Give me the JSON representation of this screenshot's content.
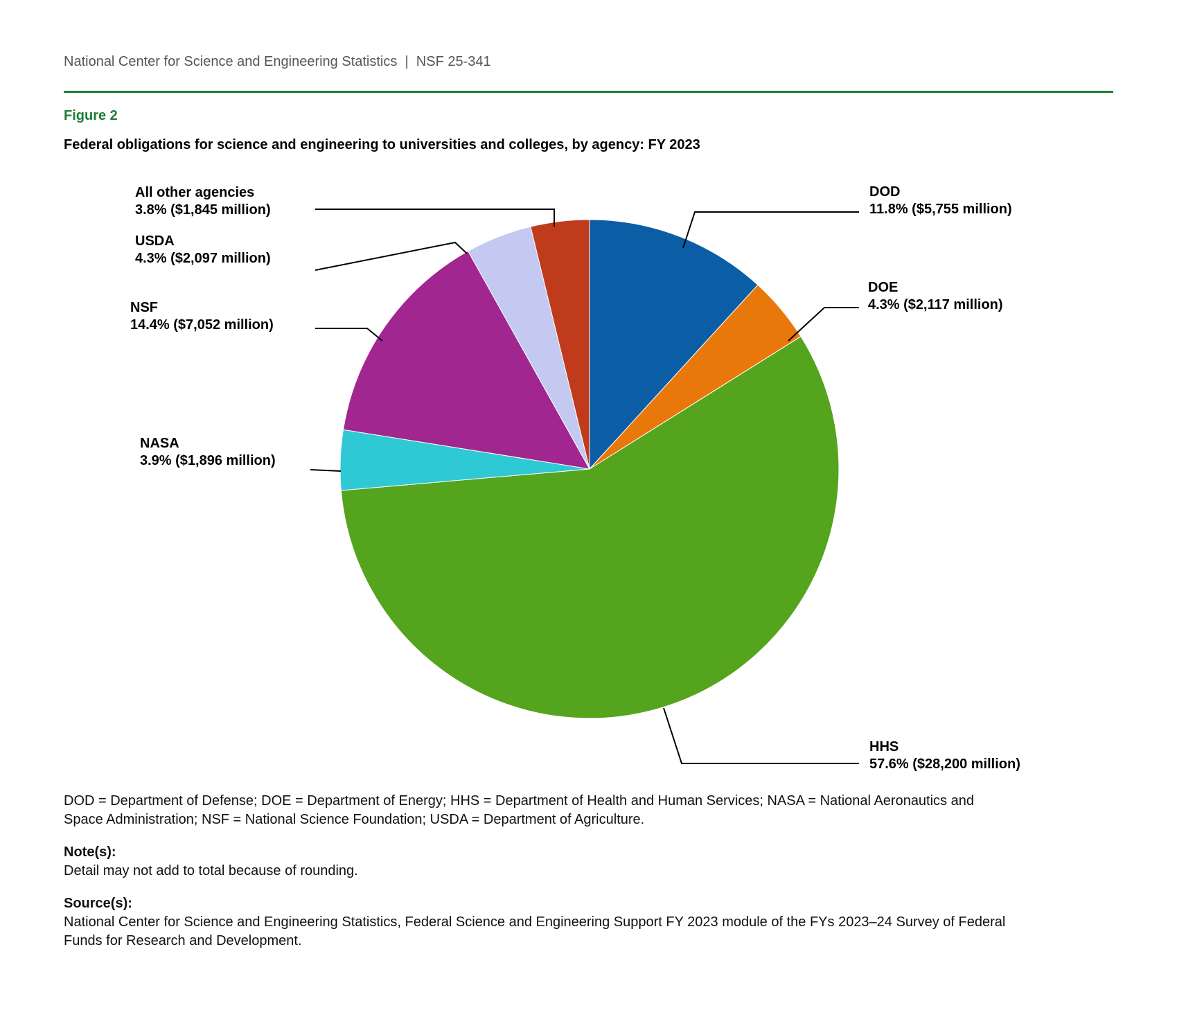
{
  "header": {
    "text": "National Center for Science and Engineering Statistics  |  NSF 25-341"
  },
  "figure": {
    "label": "Figure 2",
    "title": "Federal obligations for science and engineering to universities and colleges, by agency: FY 2023"
  },
  "chart_data": {
    "type": "pie",
    "title": "Federal obligations for science and engineering to universities and colleges, by agency: FY 2023",
    "units": "percent of total (current $ millions)",
    "direction": "clockwise",
    "start_angle_deg": 0,
    "legend_position": "callout-labels",
    "slices": [
      {
        "label": "DOD",
        "percent": 11.8,
        "value_millions": 5755,
        "amount_label": "11.8% ($5,755 million)",
        "color": "#0B5EA5"
      },
      {
        "label": "DOE",
        "percent": 4.3,
        "value_millions": 2117,
        "amount_label": "4.3% ($2,117 million)",
        "color": "#E8780A"
      },
      {
        "label": "HHS",
        "percent": 57.6,
        "value_millions": 28200,
        "amount_label": "57.6% ($28,200 million)",
        "color": "#54A41D"
      },
      {
        "label": "NASA",
        "percent": 3.9,
        "value_millions": 1896,
        "amount_label": "3.9% ($1,896 million)",
        "color": "#2FC8D5"
      },
      {
        "label": "NSF",
        "percent": 14.4,
        "value_millions": 7052,
        "amount_label": "14.4% ($7,052 million)",
        "color": "#A1268F"
      },
      {
        "label": "USDA",
        "percent": 4.3,
        "value_millions": 2097,
        "amount_label": "4.3% ($2,097 million)",
        "color": "#C3C9F1"
      },
      {
        "label": "All other agencies",
        "percent": 3.8,
        "value_millions": 1845,
        "amount_label": "3.8% ($1,845 million)",
        "color": "#C03A1C"
      }
    ]
  },
  "abbreviations": "DOD = Department of Defense; DOE = Department of Energy; HHS = Department of Health and Human Services; NASA = National Aeronautics and Space Administration; NSF = National Science Foundation; USDA = Department of Agriculture.",
  "notes": {
    "heading": "Note(s):",
    "text": "Detail may not add to total because of rounding."
  },
  "sources": {
    "heading": "Source(s):",
    "text": "National Center for Science and Engineering Statistics, Federal Science and Engineering Support FY 2023 module of the FYs 2023–24 Survey of Federal Funds for Research and Development."
  }
}
